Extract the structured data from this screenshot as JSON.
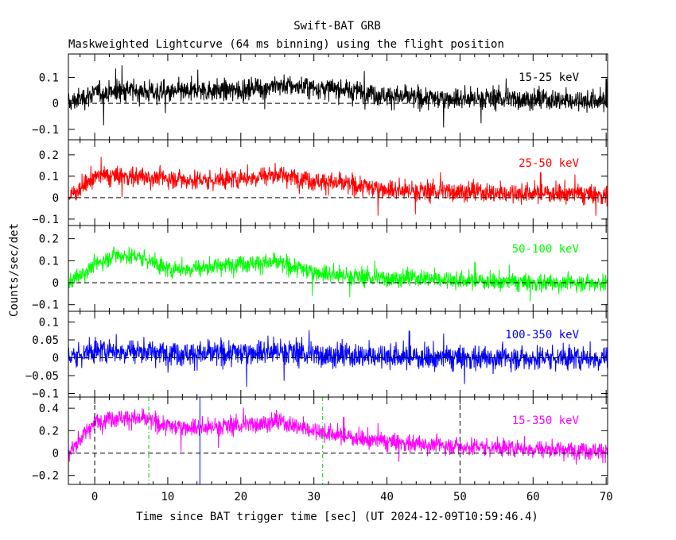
{
  "header": {
    "title": "Swift-BAT GRB",
    "subtitle": "Maskweighted Lightcurve (64 ms binning) using the flight position"
  },
  "axes": {
    "xlabel": "Time since BAT trigger time [sec] (UT 2024-12-09T10:59:46.4)",
    "ylabel": "Counts/sec/det",
    "x_ticks": [
      0,
      10,
      20,
      30,
      40,
      50,
      60,
      70
    ],
    "xlim": [
      -3.6,
      70.2
    ]
  },
  "markers": {
    "black_dashed": [
      0,
      50
    ],
    "green_dashdot": [
      7.4,
      31.2
    ],
    "blue_solid": [
      14.4
    ]
  },
  "chart_data": [
    {
      "type": "line",
      "band": "15-25 keV",
      "color": "#000000",
      "ylim": [
        -0.14,
        0.19
      ],
      "yticks": [
        -0.1,
        0,
        0.1
      ],
      "ytick_labels": [
        "−0.1",
        "0",
        "0.1"
      ],
      "noise": 0.035,
      "x": [
        -3.6,
        0,
        5,
        10,
        15,
        20,
        25,
        30,
        35,
        40,
        45,
        50,
        55,
        60,
        65,
        70.2
      ],
      "y": [
        0.0,
        0.04,
        0.05,
        0.04,
        0.05,
        0.05,
        0.07,
        0.06,
        0.05,
        0.03,
        0.02,
        0.02,
        0.02,
        0.015,
        0.01,
        0.01
      ]
    },
    {
      "type": "line",
      "band": "25-50 keV",
      "color": "#ff0000",
      "ylim": [
        -0.13,
        0.27
      ],
      "yticks": [
        -0.1,
        0,
        0.1,
        0.2
      ],
      "ytick_labels": [
        "−0.1",
        "0",
        "0.1",
        "0.2"
      ],
      "noise": 0.04,
      "x": [
        -3.6,
        0,
        5,
        10,
        15,
        20,
        25,
        30,
        35,
        40,
        45,
        50,
        55,
        60,
        65,
        70.2
      ],
      "y": [
        0.0,
        0.1,
        0.1,
        0.09,
        0.08,
        0.09,
        0.11,
        0.08,
        0.06,
        0.04,
        0.03,
        0.03,
        0.02,
        0.02,
        0.02,
        0.01
      ]
    },
    {
      "type": "line",
      "band": "50-100 keV",
      "color": "#00ff00",
      "ylim": [
        -0.13,
        0.26
      ],
      "yticks": [
        -0.1,
        0,
        0.1,
        0.2
      ],
      "ytick_labels": [
        "−0.1",
        "0",
        "0.1",
        "0.2"
      ],
      "noise": 0.035,
      "x": [
        -3.6,
        0,
        3,
        7,
        10,
        15,
        20,
        25,
        30,
        35,
        40,
        45,
        50,
        55,
        60,
        65,
        70.2
      ],
      "y": [
        0.0,
        0.08,
        0.13,
        0.11,
        0.06,
        0.07,
        0.09,
        0.09,
        0.05,
        0.03,
        0.02,
        0.02,
        0.01,
        0.005,
        0.0,
        0.0,
        0.0
      ]
    },
    {
      "type": "line",
      "band": "100-350 keV",
      "color": "#0000ff",
      "ylim": [
        -0.11,
        0.13
      ],
      "yticks": [
        -0.1,
        -0.05,
        0,
        0.05,
        0.1
      ],
      "ytick_labels": [
        "−0.1",
        "−0.05",
        "0",
        "0.05",
        "0.1"
      ],
      "noise": 0.03,
      "x": [
        -3.6,
        0,
        5,
        10,
        15,
        20,
        25,
        30,
        35,
        40,
        45,
        50,
        55,
        60,
        65,
        70.2
      ],
      "y": [
        0.0,
        0.02,
        0.02,
        0.015,
        0.01,
        0.015,
        0.02,
        0.01,
        0.005,
        0.005,
        0.0,
        0.0,
        0.0,
        0.0,
        0.0,
        0.0
      ]
    },
    {
      "type": "line",
      "band": "15-350 keV",
      "color": "#ff00ff",
      "ylim": [
        -0.28,
        0.5
      ],
      "yticks": [
        -0.2,
        0,
        0.2,
        0.4
      ],
      "ytick_labels": [
        "−0.2",
        "0",
        "0.2",
        "0.4"
      ],
      "noise": 0.07,
      "x": [
        -3.6,
        0,
        3,
        7,
        10,
        15,
        20,
        25,
        30,
        35,
        40,
        45,
        50,
        55,
        60,
        65,
        70.2
      ],
      "y": [
        0.0,
        0.28,
        0.32,
        0.3,
        0.24,
        0.23,
        0.25,
        0.28,
        0.2,
        0.14,
        0.1,
        0.08,
        0.06,
        0.05,
        0.04,
        0.03,
        0.02
      ]
    }
  ]
}
